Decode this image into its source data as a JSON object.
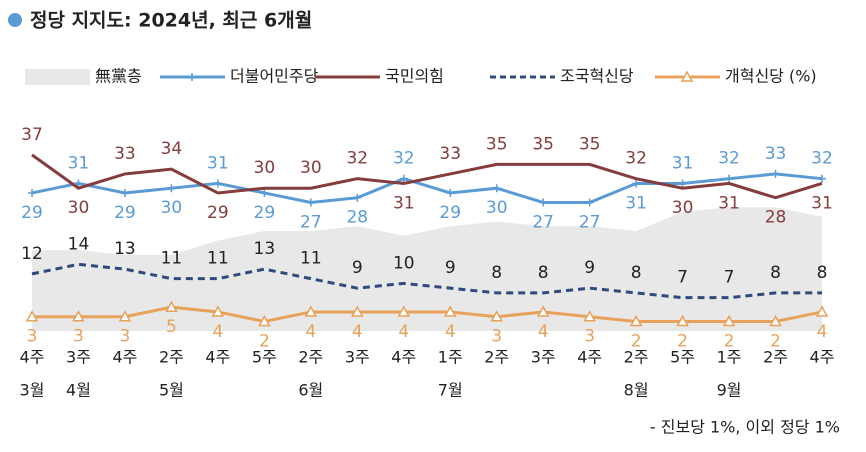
{
  "chart_data": {
    "type": "line",
    "title": "정당 지지도: 2024년, 최근 6개월",
    "categories": [
      "4주",
      "3주",
      "4주",
      "2주",
      "4주",
      "5주",
      "2주",
      "3주",
      "4주",
      "1주",
      "2주",
      "3주",
      "4주",
      "2주",
      "5주",
      "1주",
      "2주",
      "4주"
    ],
    "month_labels": [
      "3월",
      "4월",
      null,
      "5월",
      null,
      null,
      "6월",
      null,
      null,
      "7월",
      null,
      null,
      null,
      "8월",
      null,
      "9월",
      null,
      null
    ],
    "series": [
      {
        "name": "無黨층",
        "color": "#e8e8e8",
        "style": "area",
        "values": [
          17,
          17,
          16,
          16,
          19,
          21,
          21,
          22,
          20,
          22,
          23,
          22,
          22,
          21,
          25,
          26,
          26,
          24
        ]
      },
      {
        "name": "더불어민주당",
        "color": "#5b9bd5",
        "style": "plus",
        "values": [
          29,
          31,
          29,
          30,
          31,
          29,
          27,
          28,
          32,
          29,
          30,
          27,
          27,
          31,
          31,
          32,
          33,
          32
        ]
      },
      {
        "name": "국민의힘",
        "color": "#843c3c",
        "style": "solid",
        "values": [
          37,
          30,
          33,
          34,
          29,
          30,
          30,
          32,
          31,
          33,
          35,
          35,
          35,
          32,
          30,
          31,
          28,
          31
        ]
      },
      {
        "name": "조국혁신당",
        "color": "#2f4a7d",
        "style": "dash",
        "values": [
          12,
          14,
          13,
          11,
          11,
          13,
          11,
          9,
          10,
          9,
          8,
          8,
          9,
          8,
          7,
          7,
          8,
          8
        ]
      },
      {
        "name": "개혁신당 (%)",
        "color": "#e8a15a",
        "style": "triangle",
        "values": [
          3,
          3,
          3,
          5,
          4,
          2,
          4,
          4,
          4,
          4,
          3,
          4,
          3,
          2,
          2,
          2,
          2,
          4
        ]
      }
    ],
    "footnote": "- 진보당 1%, 이외 정당 1%"
  }
}
